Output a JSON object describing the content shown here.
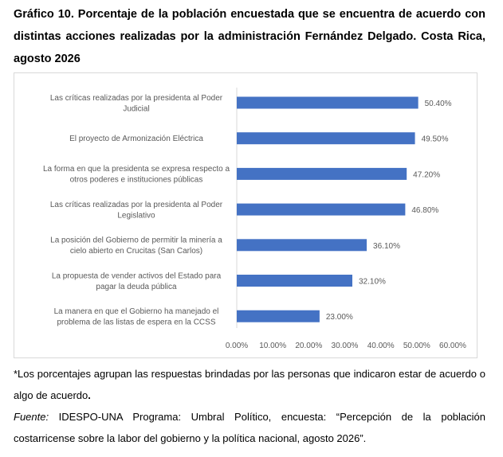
{
  "title": "Gráfico 10. Porcentaje de la población encuestada que se encuentra de acuerdo con distintas acciones realizadas por la administración Fernández Delgado. Costa Rica, agosto 2026",
  "note_text": "*Los porcentajes agrupan las respuestas brindadas por las personas que indicaron estar de acuerdo o algo de acuerdo",
  "note_end": ".",
  "source_label": "Fuente:",
  "source_text": " IDESPO-UNA Programa: Umbral Político, encuesta: “Percepción de la población costarricense sobre la labor del gobierno y la política nacional, agosto 2026”.",
  "colors": {
    "bar": "#4472C4",
    "text": "#595959",
    "grid": "#d9d9d9"
  },
  "chart_data": {
    "type": "bar",
    "orientation": "horizontal",
    "categories": [
      [
        "Las críticas realizadas por la presidenta al Poder",
        "Judicial"
      ],
      [
        "El proyecto de Armonización Eléctrica"
      ],
      [
        "La forma en que la presidenta se expresa respecto a",
        "otros poderes e instituciones públicas"
      ],
      [
        "Las críticas realizadas por la presidenta al Poder",
        "Legislativo"
      ],
      [
        "La posición del Gobierno de permitir la minería a",
        "cielo abierto en Crucitas (San Carlos)"
      ],
      [
        "La propuesta de vender activos del Estado para",
        "pagar la deuda pública"
      ],
      [
        "La manera en que el Gobierno ha manejado el",
        "problema de las listas de espera en la CCSS"
      ]
    ],
    "values": [
      50.4,
      49.5,
      47.2,
      46.8,
      36.1,
      32.1,
      23.0
    ],
    "data_labels": [
      "50.40%",
      "49.50%",
      "47.20%",
      "46.80%",
      "36.10%",
      "32.10%",
      "23.00%"
    ],
    "xlim": [
      0,
      60
    ],
    "xticks": [
      "0.00%",
      "10.00%",
      "20.00%",
      "30.00%",
      "40.00%",
      "50.00%",
      "60.00%"
    ],
    "grid": false,
    "legend": "none"
  }
}
